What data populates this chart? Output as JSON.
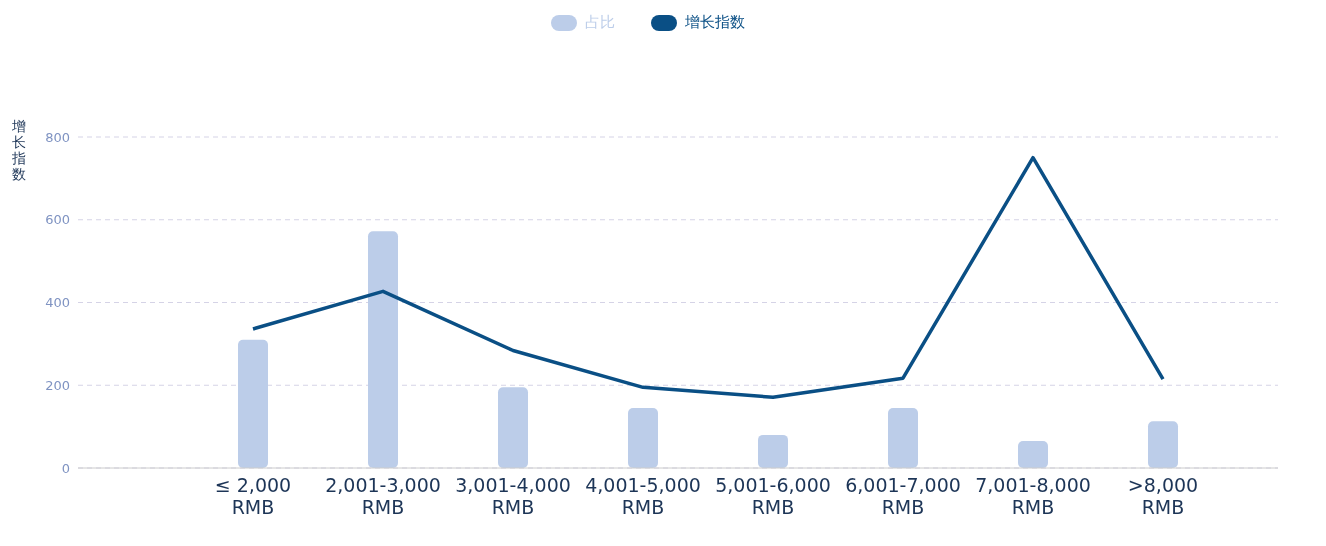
{
  "chart_data": {
    "type": "bar",
    "ylabel": "增长指数",
    "categories": [
      "≤ 2,000 RMB",
      "2,001-3,000 RMB",
      "3,001-4,000 RMB",
      "4,001-5,000 RMB",
      "5,001-6,000 RMB",
      "6,001-7,000 RMB",
      "7,001-8,000 RMB",
      ">8,000 RMB"
    ],
    "series": [
      {
        "name": "占比",
        "color": "#bccde9",
        "values": [
          310,
          572,
          195,
          145,
          80,
          145,
          65,
          113
        ]
      },
      {
        "name": "增长指数",
        "type": "line",
        "color": "#0a4f85",
        "values": [
          336,
          427,
          284,
          195,
          171,
          217,
          750,
          215
        ]
      }
    ],
    "ylim": [
      0,
      800
    ],
    "yticks": [
      0,
      200,
      400,
      600,
      800
    ],
    "grid": "y",
    "legend": "top",
    "marker": "none",
    "line_style": "solid"
  }
}
